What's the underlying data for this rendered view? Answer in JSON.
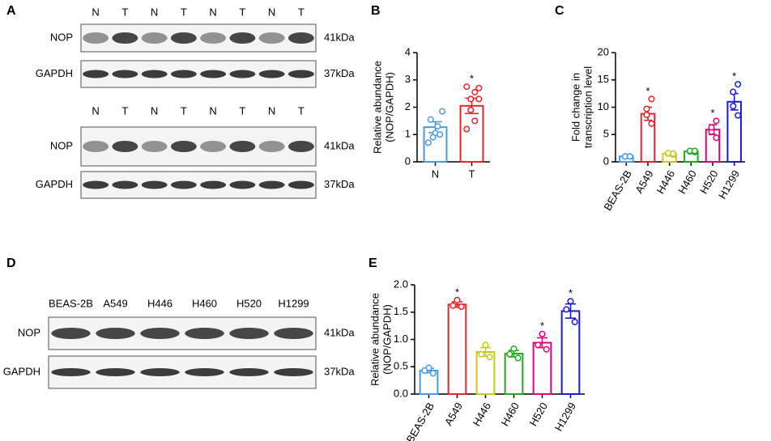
{
  "blots": [
    {
      "panel": "A",
      "lanes": [
        "N",
        "T",
        "N",
        "T",
        "N",
        "T",
        "N",
        "T"
      ],
      "rows": [
        {
          "label": "NOP",
          "size": "41kDa"
        },
        {
          "label": "GAPDH",
          "size": "37kDa"
        }
      ]
    },
    {
      "lanes": [
        "N",
        "T",
        "N",
        "T",
        "N",
        "T",
        "N",
        "T"
      ],
      "rows": [
        {
          "label": "NOP",
          "size": "41kDa"
        },
        {
          "label": "GAPDH",
          "size": "37kDa"
        }
      ]
    },
    {
      "panel": "D",
      "lanes": [
        "BEAS-2B",
        "A549",
        "H446",
        "H460",
        "H520",
        "H1299"
      ],
      "rows": [
        {
          "label": "NOP",
          "size": "41kDa"
        },
        {
          "label": "GAPDH",
          "size": "37kDa"
        }
      ]
    }
  ],
  "chart_data": [
    {
      "type": "bar",
      "panel": "B",
      "ylabel": [
        "Relative abundance",
        "(NOP/GAPDH)"
      ],
      "categories": [
        "N",
        "T"
      ],
      "values": [
        1.27,
        2.05
      ],
      "errors": [
        0.2,
        0.28
      ],
      "colors": [
        "#4a9be0",
        "#e8232a"
      ],
      "points": [
        [
          1.85,
          1.55,
          1.3,
          1.05,
          0.9,
          1.0,
          0.7
        ],
        [
          2.7,
          2.75,
          2.55,
          2.3,
          1.9,
          1.5,
          1.2,
          2.3
        ]
      ],
      "annotations": [
        null,
        "*"
      ],
      "ylim": [
        0,
        4
      ],
      "yticks": [
        0,
        1,
        2,
        3,
        4
      ]
    },
    {
      "type": "bar",
      "panel": "C",
      "ylabel": [
        "Fold change in",
        "transcription level"
      ],
      "categories": [
        "BEAS-2B",
        "A549",
        "H446",
        "H460",
        "H520",
        "H1299"
      ],
      "values": [
        1,
        8.8,
        1.5,
        1.9,
        5.9,
        11
      ],
      "errors": [
        0.05,
        1.2,
        0.1,
        0.1,
        0.9,
        1.5
      ],
      "colors": [
        "#4a9be0",
        "#e8232a",
        "#c8c81e",
        "#22aa22",
        "#e6007e",
        "#1a1adc"
      ],
      "points": [
        [
          1,
          1,
          1,
          1
        ],
        [
          7,
          8.6,
          9.7,
          11.5
        ],
        [
          1.3,
          1.5,
          1.6,
          1.5
        ],
        [
          1.8,
          1.9,
          2,
          2
        ],
        [
          4.4,
          5.5,
          6.3,
          7.5
        ],
        [
          8.5,
          10.2,
          12.8,
          14.2
        ]
      ],
      "annotations": [
        null,
        "*",
        null,
        null,
        "*",
        "*"
      ],
      "ylim": [
        0,
        20
      ],
      "yticks": [
        0,
        5,
        10,
        15,
        20
      ]
    },
    {
      "type": "bar",
      "panel": "E",
      "ylabel": [
        "Relative abundance",
        "(NOP/GAPDH)"
      ],
      "categories": [
        "BEAS-2B",
        "A549",
        "H446",
        "H460",
        "H520",
        "H1299"
      ],
      "values": [
        0.43,
        1.64,
        0.77,
        0.74,
        0.94,
        1.52
      ],
      "errors": [
        0.04,
        0.05,
        0.08,
        0.06,
        0.09,
        0.13
      ],
      "colors": [
        "#4a9be0",
        "#e8232a",
        "#c8c81e",
        "#22aa22",
        "#e6007e",
        "#1a1adc"
      ],
      "points": [
        [
          0.38,
          0.48,
          0.43
        ],
        [
          1.6,
          1.72,
          1.62
        ],
        [
          0.68,
          0.9,
          0.73
        ],
        [
          0.66,
          0.83,
          0.73
        ],
        [
          0.82,
          1.1,
          0.9
        ],
        [
          1.32,
          1.7,
          1.55
        ]
      ],
      "annotations": [
        null,
        "*",
        null,
        null,
        "*",
        "*"
      ],
      "ylim": [
        0,
        2
      ],
      "yticks": [
        {
          "value": 0,
          "label": "0.0"
        },
        {
          "value": 0.5,
          "label": "0.5"
        },
        {
          "value": 1,
          "label": "1.0"
        },
        {
          "value": 1.5,
          "label": "1.5"
        },
        {
          "value": 2,
          "label": "2.0"
        }
      ]
    }
  ]
}
